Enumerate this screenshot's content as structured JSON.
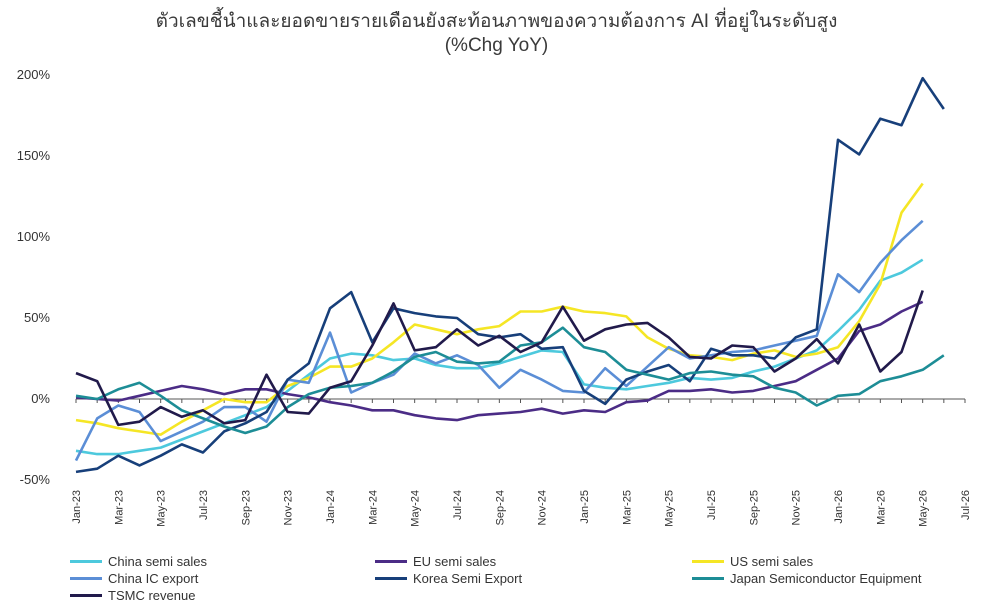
{
  "title": "ตัวเลขชี้นำและยอดขายรายเดือนยังสะท้อนภาพของความต้องการ AI ที่อยู่ในระดับสูง",
  "subtitle": "(%Chg YoY)",
  "chart_data": {
    "type": "line",
    "ylim": [
      -50,
      200
    ],
    "yticks": [
      -50,
      0,
      50,
      100,
      150,
      200
    ],
    "ytick_labels": [
      "-50%",
      "0%",
      "50%",
      "100%",
      "150%",
      "200%"
    ],
    "xlabels": [
      "Jan-23",
      "Mar-23",
      "May-23",
      "Jul-23",
      "Sep-23",
      "Nov-23",
      "Jan-24",
      "Mar-24",
      "May-24",
      "Jul-24",
      "Sep-24",
      "Nov-24",
      "Jan-25",
      "Mar-25",
      "May-25",
      "Jul-25",
      "Sep-25",
      "Nov-25",
      "Jan-26",
      "Mar-26",
      "May-26",
      "Jul-26"
    ],
    "x": [
      "Jan-23",
      "Feb-23",
      "Mar-23",
      "Apr-23",
      "May-23",
      "Jun-23",
      "Jul-23",
      "Aug-23",
      "Sep-23",
      "Oct-23",
      "Nov-23",
      "Dec-23",
      "Jan-24",
      "Feb-24",
      "Mar-24",
      "Apr-24",
      "May-24",
      "Jun-24",
      "Jul-24",
      "Aug-24",
      "Sep-24",
      "Oct-24",
      "Nov-24",
      "Dec-24",
      "Jan-25",
      "Feb-25",
      "Mar-25",
      "Apr-25",
      "May-25",
      "Jun-25",
      "Jul-25",
      "Aug-25",
      "Sep-25",
      "Oct-25",
      "Nov-25",
      "Dec-25",
      "Jan-26",
      "Feb-26",
      "Mar-26",
      "Apr-26",
      "May-26",
      "Jun-26",
      "Jul-26"
    ],
    "grid": false,
    "legend_position": "bottom",
    "series": [
      {
        "name": "China semi sales",
        "color": "#4dc9dd",
        "values": [
          -32,
          -34,
          -34,
          -32,
          -30,
          -25,
          -20,
          -15,
          -10,
          -5,
          5,
          15,
          25,
          28,
          27,
          24,
          25,
          21,
          19,
          19,
          22,
          26,
          30,
          29,
          9,
          7,
          6,
          8,
          10,
          13,
          12,
          13,
          17,
          20,
          25,
          30,
          42,
          55,
          73,
          78,
          86,
          null,
          null
        ]
      },
      {
        "name": "EU semi sales",
        "color": "#4b2c86",
        "values": [
          1,
          0,
          -1,
          2,
          5,
          8,
          6,
          3,
          6,
          6,
          3,
          1,
          -2,
          -4,
          -7,
          -7,
          -10,
          -12,
          -13,
          -10,
          -9,
          -8,
          -6,
          -9,
          -7,
          -8,
          -2,
          -1,
          5,
          5,
          6,
          4,
          5,
          8,
          11,
          18,
          25,
          42,
          46,
          54,
          60,
          null,
          null
        ]
      },
      {
        "name": "US semi sales",
        "color": "#f5e625",
        "values": [
          -13,
          -15,
          -18,
          -20,
          -22,
          -14,
          -7,
          0,
          -2,
          -2,
          8,
          13,
          20,
          20,
          25,
          35,
          46,
          43,
          40,
          43,
          45,
          54,
          54,
          57,
          54,
          53,
          51,
          38,
          31,
          27,
          26,
          24,
          28,
          30,
          26,
          28,
          32,
          48,
          71,
          115,
          133,
          null,
          null
        ]
      },
      {
        "name": "China IC export",
        "color": "#5b8ed6",
        "values": [
          -38,
          -12,
          -4,
          -8,
          -26,
          -20,
          -14,
          -5,
          -5,
          -14,
          12,
          10,
          41,
          4,
          10,
          15,
          28,
          22,
          27,
          21,
          7,
          18,
          12,
          5,
          4,
          19,
          8,
          20,
          32,
          25,
          27,
          29,
          30,
          33,
          36,
          39,
          77,
          66,
          84,
          98,
          110,
          null,
          null
        ]
      },
      {
        "name": "Korea Semi Export",
        "color": "#173f7a",
        "values": [
          -45,
          -43,
          -35,
          -41,
          -35,
          -28,
          -33,
          -20,
          -15,
          -8,
          12,
          22,
          56,
          66,
          35,
          56,
          53,
          51,
          50,
          40,
          38,
          40,
          31,
          32,
          5,
          -3,
          12,
          17,
          21,
          11,
          31,
          27,
          27,
          25,
          38,
          43,
          160,
          151,
          173,
          169,
          198,
          179,
          null
        ]
      },
      {
        "name": "Japan Semiconductor Equipment",
        "color": "#1d8d96",
        "values": [
          2,
          0,
          6,
          10,
          2,
          -7,
          -12,
          -17,
          -21,
          -17,
          -5,
          3,
          7,
          8,
          10,
          17,
          26,
          29,
          23,
          22,
          23,
          33,
          35,
          44,
          32,
          29,
          18,
          15,
          12,
          16,
          17,
          15,
          14,
          7,
          4,
          -4,
          2,
          3,
          11,
          14,
          18,
          27,
          null
        ]
      },
      {
        "name": "TSMC revenue",
        "color": "#211a4b",
        "values": [
          16,
          11,
          -16,
          -14,
          -5,
          -11,
          -7,
          -15,
          -13,
          15,
          -8,
          -9,
          7,
          11,
          33,
          59,
          30,
          32,
          43,
          33,
          39,
          29,
          35,
          57,
          36,
          43,
          46,
          47,
          38,
          26,
          25,
          33,
          32,
          17,
          25,
          37,
          22,
          46,
          17,
          29,
          67,
          null,
          null
        ]
      }
    ]
  }
}
